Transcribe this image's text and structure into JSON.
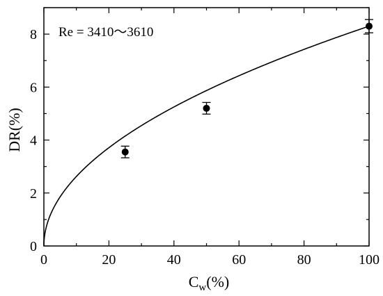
{
  "chart_data": {
    "type": "scatter",
    "annotation": "Re = 3410～3610",
    "xlabel": {
      "main": "C",
      "sub": "w",
      "unit": "(%)"
    },
    "ylabel": "DR(%)",
    "xlim": [
      0,
      100
    ],
    "ylim": [
      0,
      9
    ],
    "x_ticks": [
      0,
      20,
      40,
      60,
      80,
      100
    ],
    "y_ticks": [
      0,
      2,
      4,
      6,
      8
    ],
    "x_tick_labels": [
      "0",
      "20",
      "40",
      "60",
      "80",
      "100"
    ],
    "y_tick_labels": [
      "0",
      "2",
      "4",
      "6",
      "8"
    ],
    "x_minor_step": 10,
    "y_minor_step": 1,
    "grid": false,
    "points": [
      {
        "x": 25,
        "y": 3.55,
        "err": 0.22
      },
      {
        "x": 50,
        "y": 5.2,
        "err": 0.22
      },
      {
        "x": 100,
        "y": 8.3,
        "err": 0.25
      }
    ],
    "fit_curve": {
      "form": "power",
      "a": 0.83,
      "b": 0.5
    }
  }
}
